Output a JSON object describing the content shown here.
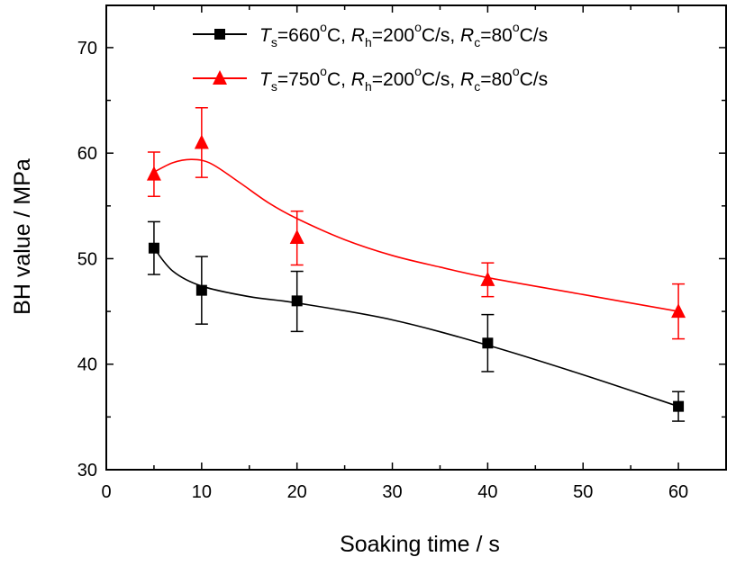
{
  "chart_data": {
    "type": "line",
    "xlabel": "Soaking time / s",
    "ylabel": "BH value / MPa",
    "xlim": [
      0,
      65
    ],
    "ylim": [
      30,
      74
    ],
    "x_ticks": [
      "0",
      "10",
      "20",
      "30",
      "40",
      "50",
      "60"
    ],
    "y_ticks": [
      "30",
      "40",
      "50",
      "60",
      "70"
    ],
    "grid": false,
    "legend_position": "top-right",
    "series": [
      {
        "name": "Ts=660°C, Rh=200°C/s, Rc=80°C/s",
        "legend": {
          "T": "T",
          "T_sub": "s",
          "T_val": "=660",
          "deg1": "o",
          "C1": "C, ",
          "R1": "R",
          "R1_sub": "h",
          "R1_val": "=200",
          "deg2": "o",
          "u1": "C/s, ",
          "R2": "R",
          "R2_sub": "c",
          "R2_val": "=80",
          "deg3": "o",
          "u2": "C/s"
        },
        "color": "#000000",
        "marker": "square",
        "x": [
          5,
          10,
          20,
          40,
          60
        ],
        "y": [
          51,
          47,
          46,
          42,
          36
        ],
        "err_upper": [
          53.5,
          50.2,
          48.8,
          44.7,
          37.4
        ],
        "err_lower": [
          48.5,
          43.8,
          43.1,
          39.3,
          34.6
        ],
        "fit_curve": [
          [
            5,
            51
          ],
          [
            7,
            48.8
          ],
          [
            10,
            47.4
          ],
          [
            15,
            46.4
          ],
          [
            20,
            45.8
          ],
          [
            30,
            44.2
          ],
          [
            40,
            41.8
          ],
          [
            50,
            39
          ],
          [
            60,
            36
          ]
        ]
      },
      {
        "name": "Ts=750°C, Rh=200°C/s, Rc=80°C/s",
        "legend": {
          "T": "T",
          "T_sub": "s",
          "T_val": "=750",
          "deg1": "o",
          "C1": "C, ",
          "R1": "R",
          "R1_sub": "h",
          "R1_val": "=200",
          "deg2": "o",
          "u1": "C/s, ",
          "R2": "R",
          "R2_sub": "c",
          "R2_val": "=80",
          "deg3": "o",
          "u2": "C/s"
        },
        "color": "#ff0000",
        "marker": "triangle",
        "x": [
          5,
          10,
          20,
          40,
          60
        ],
        "y": [
          58,
          61,
          52,
          48,
          45
        ],
        "err_upper": [
          60.1,
          64.3,
          54.5,
          49.6,
          47.6
        ],
        "err_lower": [
          55.9,
          57.7,
          49.4,
          46.4,
          42.4
        ],
        "fit_curve": [
          [
            5,
            58.2
          ],
          [
            7,
            59.1
          ],
          [
            9,
            59.4
          ],
          [
            11,
            59
          ],
          [
            14,
            57.2
          ],
          [
            17,
            55.3
          ],
          [
            20,
            53.8
          ],
          [
            25,
            51.8
          ],
          [
            30,
            50.3
          ],
          [
            35,
            49.2
          ],
          [
            40,
            48.2
          ],
          [
            50,
            46.6
          ],
          [
            60,
            45
          ]
        ]
      }
    ]
  }
}
